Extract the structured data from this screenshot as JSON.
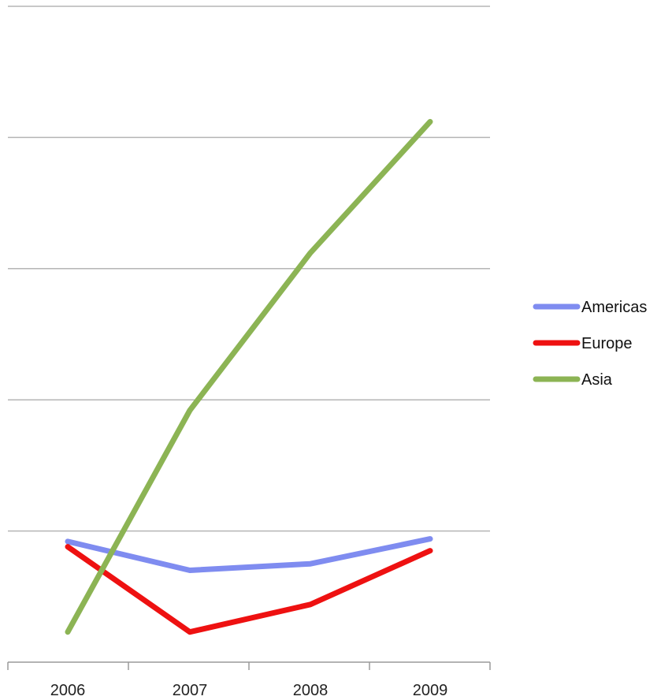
{
  "chart_data": {
    "type": "line",
    "categories": [
      "2006",
      "2007",
      "2008",
      "2009"
    ],
    "ylim": [
      0,
      5
    ],
    "grid": true,
    "legend_position": "right",
    "series": [
      {
        "name": "Americas",
        "color": "#7f8cf0",
        "values": [
          0.92,
          0.7,
          0.75,
          0.94
        ]
      },
      {
        "name": "Europe",
        "color": "#ee1111",
        "values": [
          0.88,
          0.23,
          0.44,
          0.85
        ]
      },
      {
        "name": "Asia",
        "color": "#8cb454",
        "values": [
          0.23,
          1.92,
          3.12,
          4.12
        ]
      }
    ]
  }
}
